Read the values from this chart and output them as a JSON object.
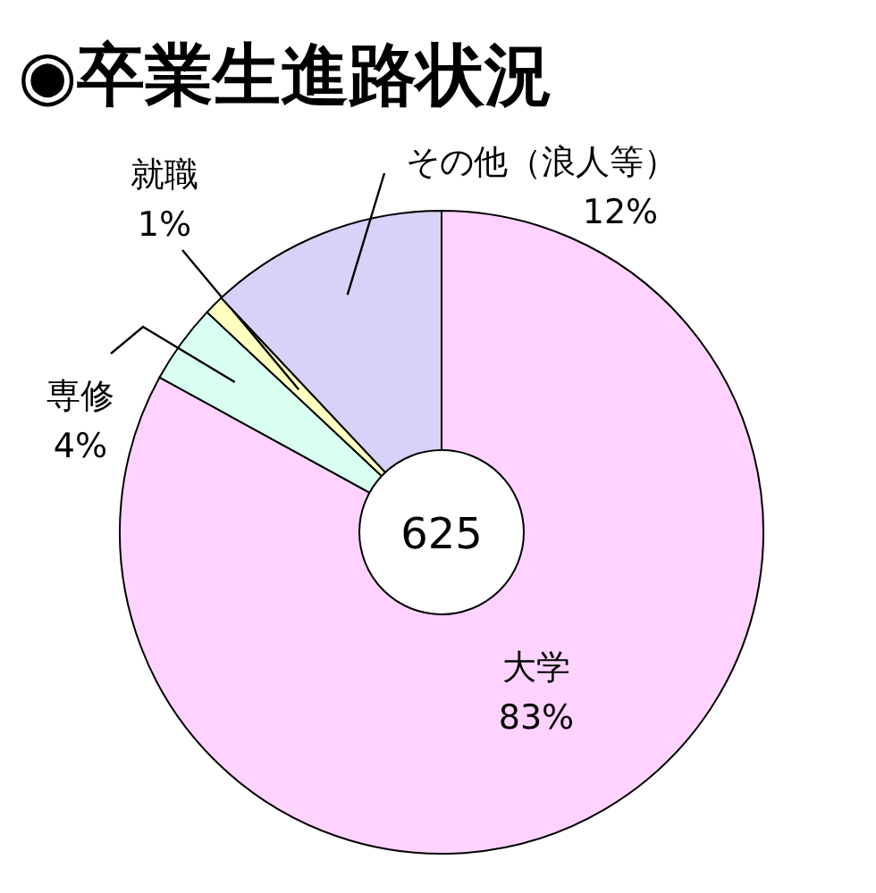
{
  "chart_data": {
    "type": "donut",
    "title": "◉卒業生進路状況",
    "categories": [
      "大学",
      "専修",
      "就職",
      "その他（浪人等）"
    ],
    "values": [
      83,
      4,
      1,
      12
    ],
    "value_labels": [
      "83%",
      "4%",
      "1%",
      "12%"
    ],
    "colors": [
      "#ffd2ff",
      "#d9fff0",
      "#ffffc0",
      "#d8d2f8"
    ],
    "annotations": [
      "625"
    ]
  }
}
